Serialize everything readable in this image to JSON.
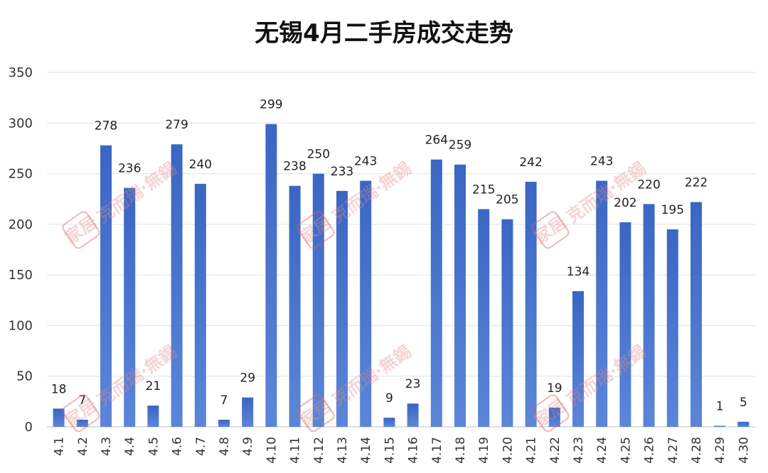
{
  "chart_data": {
    "type": "bar",
    "title": "无锡4月二手房成交走势",
    "xlabel": "",
    "ylabel": "",
    "ylim": [
      0,
      350
    ],
    "yticks": [
      0,
      50,
      100,
      150,
      200,
      250,
      300,
      350
    ],
    "grid": true,
    "legend": "none",
    "bar_color": "#4472c4",
    "categories": [
      "4.1",
      "4.2",
      "4.3",
      "4.4",
      "4.5",
      "4.6",
      "4.7",
      "4.8",
      "4.9",
      "4.10",
      "4.11",
      "4.12",
      "4.13",
      "4.14",
      "4.15",
      "4.16",
      "4.17",
      "4.18",
      "4.19",
      "4.20",
      "4.21",
      "4.22",
      "4.23",
      "4.24",
      "4.25",
      "4.26",
      "4.27",
      "4.28",
      "4.29",
      "4.30"
    ],
    "values": [
      18,
      7,
      278,
      236,
      21,
      279,
      240,
      7,
      29,
      299,
      238,
      250,
      233,
      243,
      9,
      23,
      264,
      259,
      215,
      205,
      242,
      19,
      134,
      243,
      202,
      220,
      195,
      222,
      1,
      5
    ]
  },
  "watermark": {
    "text": "克而瑞·無錫",
    "logo_text": "家居",
    "color": "#e06060"
  }
}
